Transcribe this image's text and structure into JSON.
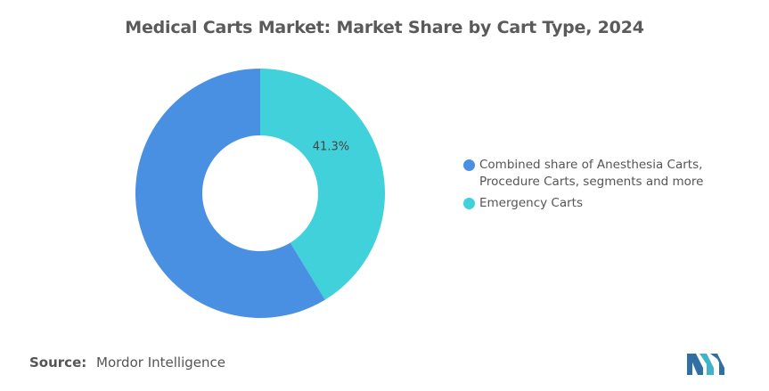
{
  "colors": {
    "series_blue": "#4a90e2",
    "series_teal": "#41d1db",
    "title": "#5a5a5a",
    "text": "#555555"
  },
  "chart_data": {
    "type": "pie",
    "style": "donut",
    "title": "Medical Carts Market: Market Share by Cart Type, 2024",
    "series": [
      {
        "name": "Combined share of Anesthesia Carts, Procedure Carts, segments and more",
        "value": 58.7,
        "color": "#4a90e2",
        "label": ""
      },
      {
        "name": "Emergency Carts",
        "value": 41.3,
        "color": "#41d1db",
        "label": "41.3%"
      }
    ],
    "legend": "right"
  },
  "footer": {
    "source_label": "Source:",
    "source_value": "Mordor Intelligence"
  },
  "logo": {
    "icon": "mordor-intelligence-logo"
  }
}
